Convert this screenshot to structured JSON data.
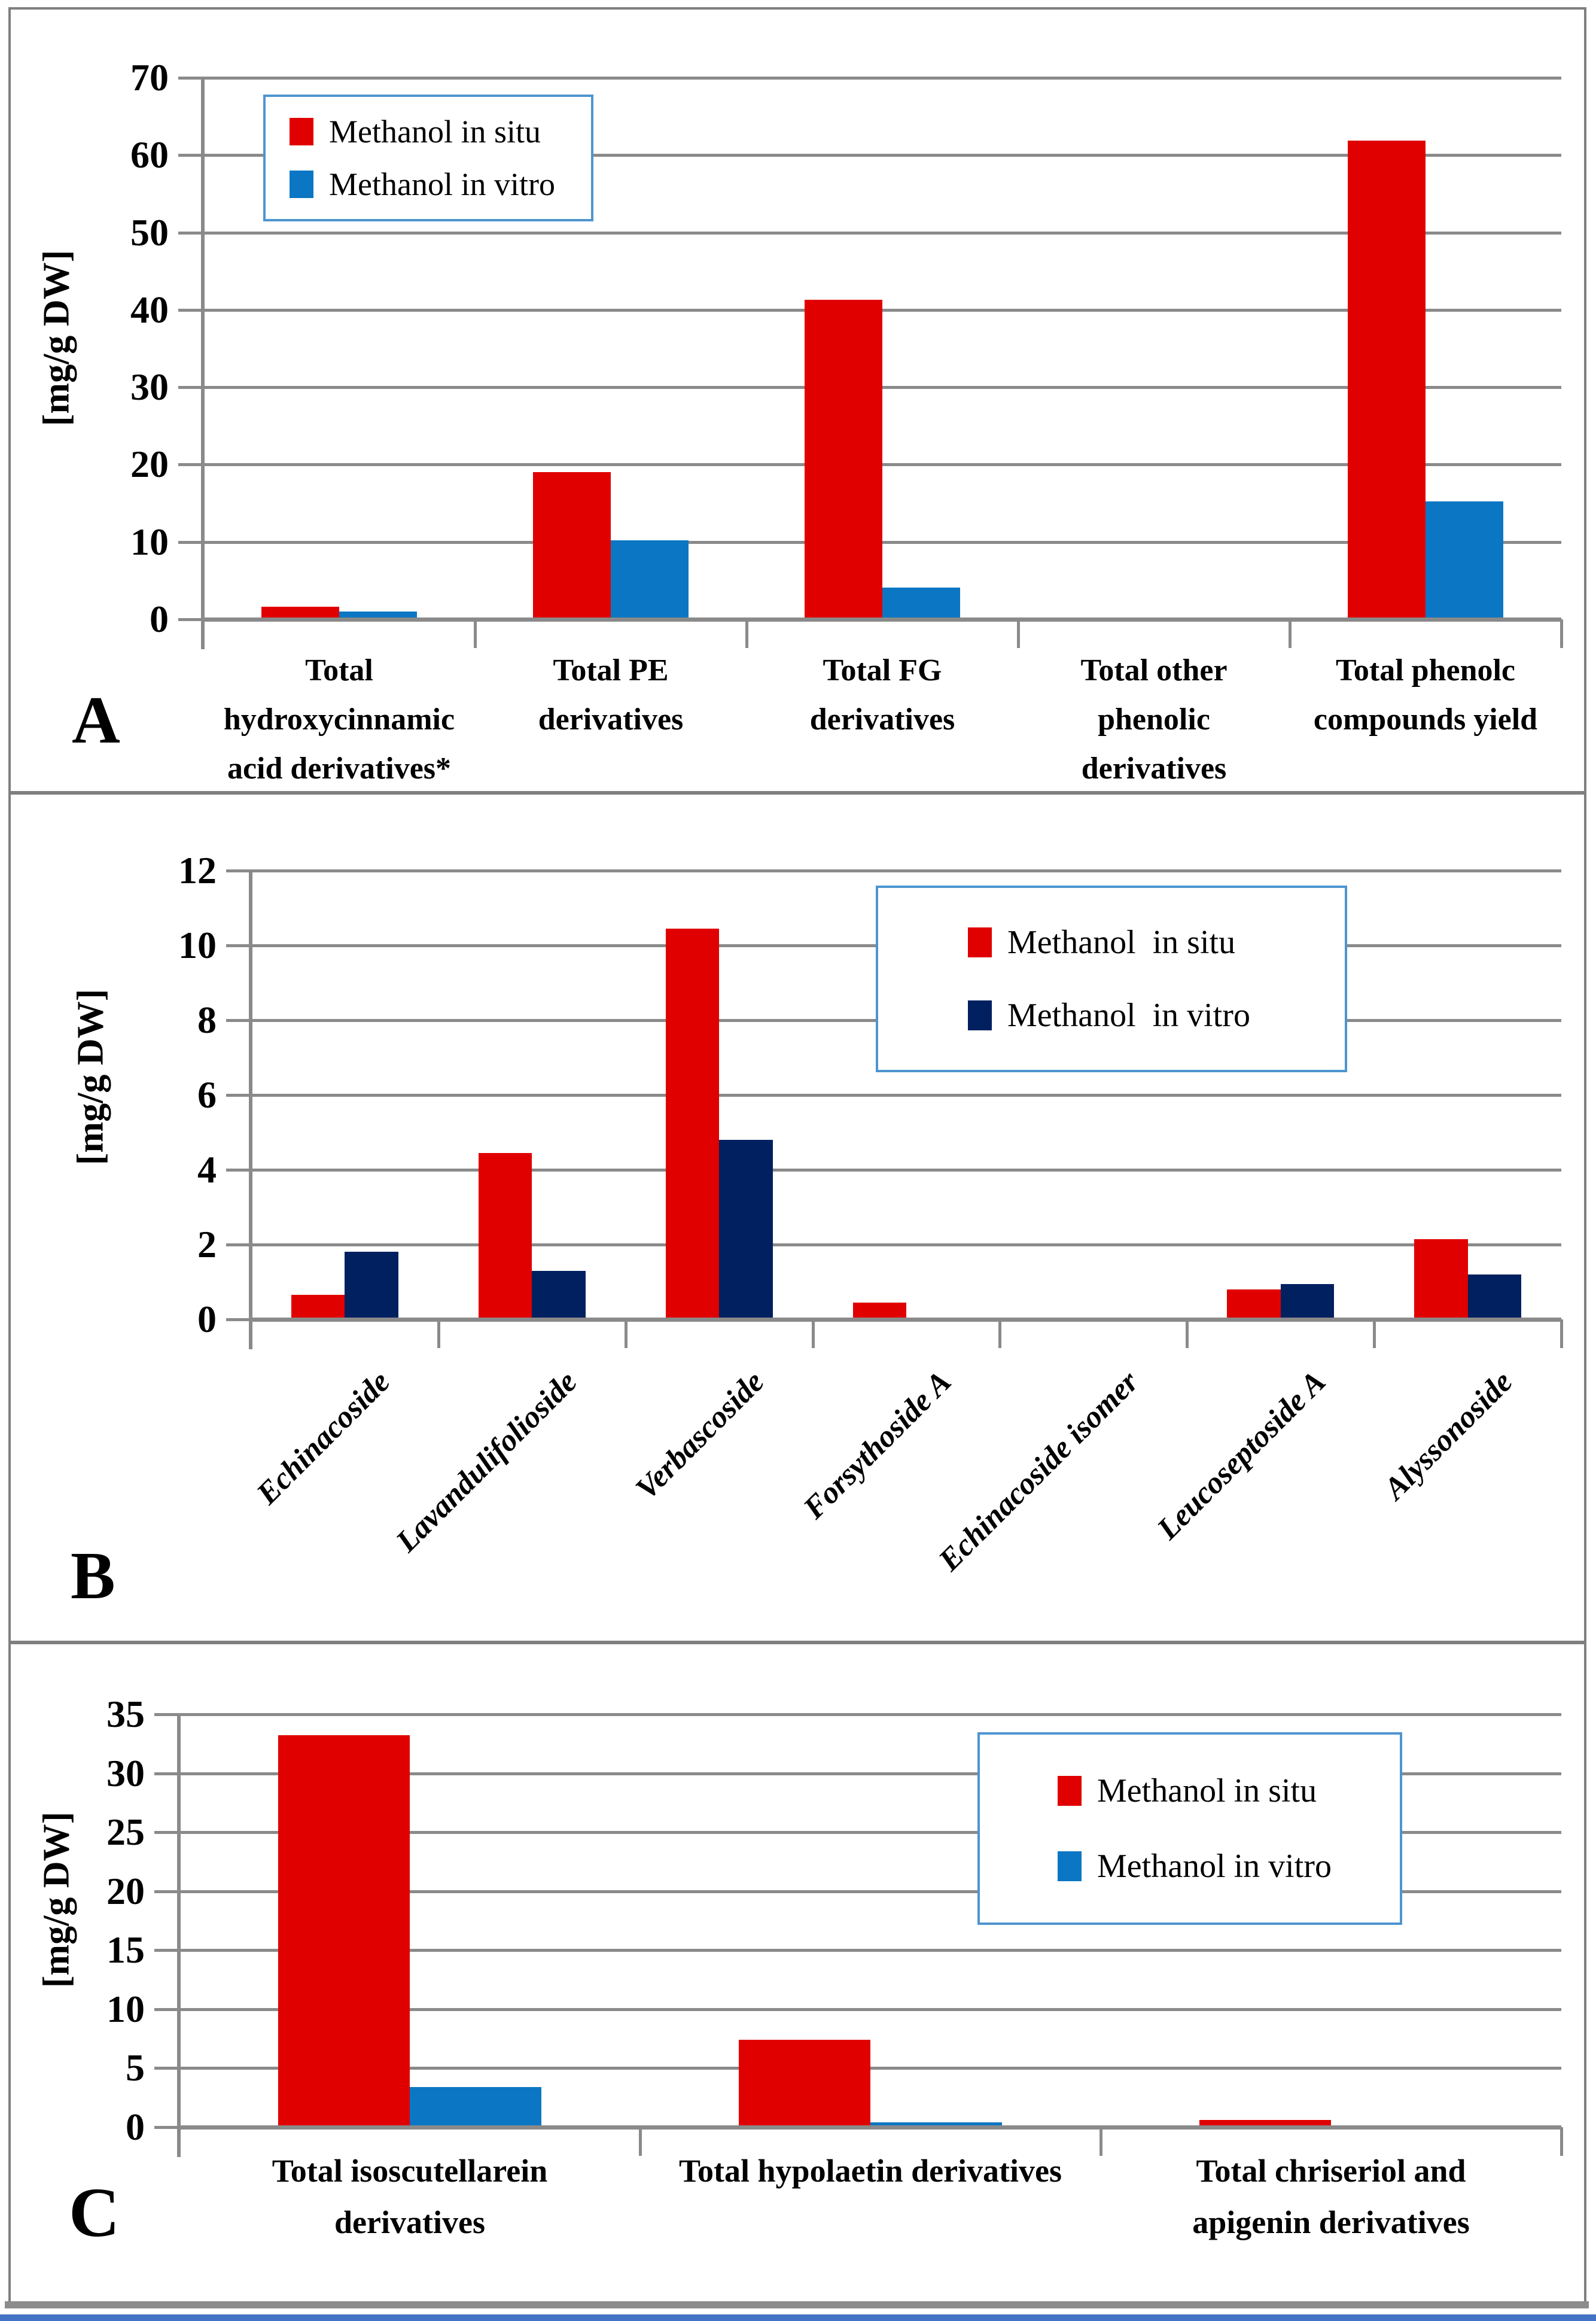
{
  "panel_letters": [
    "A",
    "B",
    "C"
  ],
  "y_axis_label": "[mg/g DW]",
  "colors": {
    "in_situ_red": "#E00000",
    "in_vitro_blue": "#0B76C3",
    "in_vitro_navy": "#002060",
    "gridline_gray": "#8A8A8A",
    "legend_border_blue": "#4E95D0",
    "panel_border_gray": "#7F7F7F",
    "bottom_strip_blue": "#4472C4"
  },
  "chart_data": [
    {
      "panel": "A",
      "type": "bar",
      "title": "",
      "ylabel": "[mg/g DW]",
      "ylim": [
        0,
        70
      ],
      "yticks": [
        0,
        10,
        20,
        30,
        40,
        50,
        60,
        70
      ],
      "grid": true,
      "legend_position": "top-left-inside",
      "x_label_rotation": 0,
      "categories": [
        "Total hydroxycinnamic acid derivatives*",
        "Total PE derivatives",
        "Total FG derivatives",
        "Total other phenolic derivatives",
        "Total phenolc compounds yield"
      ],
      "category_lines": [
        [
          "Total",
          "hydroxycinnamic",
          "acid derivatives*"
        ],
        [
          "Total PE",
          "derivatives"
        ],
        [
          "Total FG",
          "derivatives"
        ],
        [
          "Total other",
          "phenolic",
          "derivatives"
        ],
        [
          "Total phenolc",
          "compounds yield"
        ]
      ],
      "series": [
        {
          "name": "Methanol in situ",
          "color": "#E00000",
          "values": [
            1.6,
            19.0,
            41.3,
            0,
            61.9
          ]
        },
        {
          "name": "Methanol in vitro",
          "color": "#0B76C3",
          "values": [
            1.0,
            10.2,
            4.1,
            0,
            15.2
          ]
        }
      ]
    },
    {
      "panel": "B",
      "type": "bar",
      "title": "",
      "ylabel": "[mg/g DW]",
      "ylim": [
        0,
        12
      ],
      "yticks": [
        0,
        2,
        4,
        6,
        8,
        10,
        12
      ],
      "grid": true,
      "legend_position": "top-right-inside",
      "x_label_rotation": 45,
      "categories": [
        "Echinacoside",
        "Lavandulifolioside",
        "Verbascoside",
        "Forsythoside A",
        "Echinacoside isomer",
        "Leucoseptoside A",
        "Alyssonoside"
      ],
      "series": [
        {
          "name": "Methanol  in situ",
          "color": "#E00000",
          "values": [
            0.65,
            4.45,
            10.45,
            0.45,
            0,
            0.8,
            2.15
          ]
        },
        {
          "name": "Methanol  in vitro",
          "color": "#002060",
          "values": [
            1.8,
            1.3,
            4.8,
            0,
            0,
            0.95,
            1.2
          ]
        }
      ]
    },
    {
      "panel": "C",
      "type": "bar",
      "title": "",
      "ylabel": "[mg/g DW]",
      "ylim": [
        0,
        35
      ],
      "yticks": [
        0,
        5,
        10,
        15,
        20,
        25,
        30,
        35
      ],
      "grid": true,
      "legend_position": "top-right-inside",
      "x_label_rotation": 0,
      "categories": [
        "Total isoscutellarein derivatives",
        "Total hypolaetin derivatives",
        "Total chriseriol and apigenin derivatives"
      ],
      "category_lines": [
        [
          "Total isoscutellarein",
          "derivatives"
        ],
        [
          "Total hypolaetin derivatives"
        ],
        [
          "Total chriseriol and",
          "apigenin derivatives"
        ]
      ],
      "series": [
        {
          "name": "Methanol in situ",
          "color": "#E00000",
          "values": [
            33.2,
            7.4,
            0.6
          ]
        },
        {
          "name": "Methanol in vitro",
          "color": "#0B76C3",
          "values": [
            3.4,
            0.4,
            0.15
          ]
        }
      ]
    }
  ]
}
